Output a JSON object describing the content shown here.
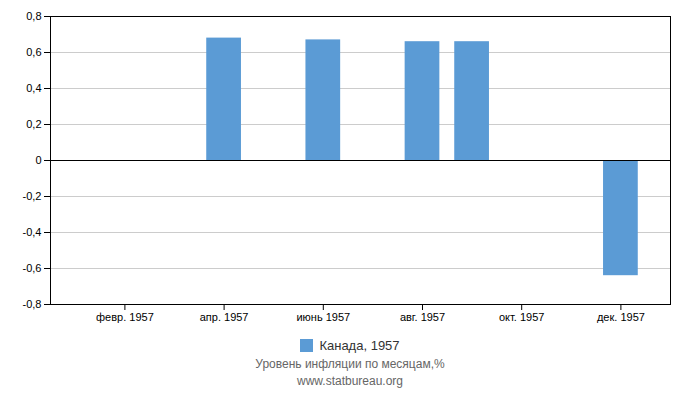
{
  "chart_data": {
    "type": "bar",
    "x": [
      4,
      6,
      8,
      9,
      12
    ],
    "series": [
      {
        "name": "Канада, 1957",
        "color": "#5B9BD5",
        "values": [
          0.68,
          0.67,
          0.66,
          0.66,
          -0.64
        ]
      }
    ],
    "xlim": [
      0.5,
      13
    ],
    "xticks": [
      {
        "value": 2,
        "label": "февр. 1957"
      },
      {
        "value": 4,
        "label": "апр. 1957"
      },
      {
        "value": 6,
        "label": "июнь 1957"
      },
      {
        "value": 8,
        "label": "авг. 1957"
      },
      {
        "value": 10,
        "label": "окт. 1957"
      },
      {
        "value": 12,
        "label": "дек. 1957"
      }
    ],
    "ylim": [
      -0.8,
      0.8
    ],
    "yticks": [
      {
        "value": -0.8,
        "label": "-0,8"
      },
      {
        "value": -0.6,
        "label": "-0,6"
      },
      {
        "value": -0.4,
        "label": "-0,4"
      },
      {
        "value": -0.2,
        "label": "-0,2"
      },
      0,
      {
        "value": 0.2,
        "label": "0,2"
      },
      {
        "value": 0.4,
        "label": "0,4"
      },
      {
        "value": 0.6,
        "label": "0,6"
      },
      {
        "value": 0.8,
        "label": "0,8"
      }
    ],
    "grid": true,
    "legend": "bottom",
    "annotations": [
      "Уровень инфляции по месяцам,%",
      "www.statbureau.org"
    ]
  }
}
